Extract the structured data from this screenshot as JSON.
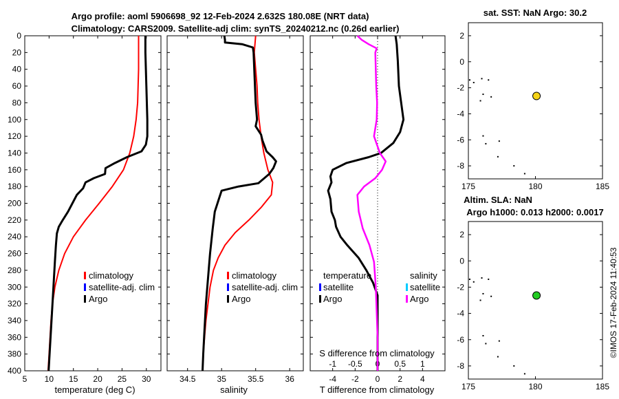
{
  "header": {
    "title_line1": "Argo profile: aoml 5906698_92 12-Feb-2024 2.632S 180.08E (NRT data)",
    "title_line2": "Climatology: CARS2009. Satellite-adj clim: synTS_20240212.nc (0.26d earlier)"
  },
  "side_stamp": "©IMOS 17-Feb-2024 11:40:53",
  "colors": {
    "climatology": "#ff0000",
    "satellite": "#0000ff",
    "argo": "#000000",
    "sat_salinity": "#00ccff",
    "argo_salinity": "#ff00ff",
    "sst_marker": "#f5d316",
    "sla_marker": "#22cc22"
  },
  "chart_data": [
    {
      "id": "temperature",
      "type": "line",
      "xlabel": "temperature (deg C)",
      "xlim": [
        5,
        33
      ],
      "ylim": [
        0,
        400
      ],
      "y_reversed": true,
      "xticks": [
        "5",
        "10",
        "15",
        "20",
        "25",
        "30"
      ],
      "xtick_values": [
        5,
        10,
        15,
        20,
        25,
        30
      ],
      "yticks": [
        "0",
        "20",
        "40",
        "60",
        "80",
        "100",
        "120",
        "140",
        "160",
        "180",
        "200",
        "220",
        "240",
        "260",
        "280",
        "300",
        "320",
        "340",
        "360",
        "380",
        "400"
      ],
      "ytick_values": [
        0,
        20,
        40,
        60,
        80,
        100,
        120,
        140,
        160,
        180,
        200,
        220,
        240,
        260,
        280,
        300,
        320,
        340,
        360,
        380,
        400
      ],
      "legend": {
        "items": [
          "climatology",
          "satellite-adj. clim",
          "Argo"
        ],
        "placement": "center-right"
      },
      "series": [
        {
          "name": "climatology",
          "color": "#ff0000",
          "points": [
            [
              28.4,
              0
            ],
            [
              28.4,
              20
            ],
            [
              28.4,
              40
            ],
            [
              28.3,
              60
            ],
            [
              28.2,
              80
            ],
            [
              27.9,
              100
            ],
            [
              27.4,
              120
            ],
            [
              26.6,
              140
            ],
            [
              25.3,
              160
            ],
            [
              23.0,
              180
            ],
            [
              20.3,
              200
            ],
            [
              17.5,
              220
            ],
            [
              15.0,
              240
            ],
            [
              13.2,
              260
            ],
            [
              12.0,
              280
            ],
            [
              11.2,
              300
            ],
            [
              10.7,
              320
            ],
            [
              10.4,
              340
            ],
            [
              10.2,
              360
            ],
            [
              10.0,
              380
            ],
            [
              9.8,
              400
            ]
          ]
        },
        {
          "name": "Argo",
          "color": "#000000",
          "points": [
            [
              29.8,
              0
            ],
            [
              29.8,
              20
            ],
            [
              29.9,
              40
            ],
            [
              30.0,
              60
            ],
            [
              30.1,
              80
            ],
            [
              30.2,
              100
            ],
            [
              30.2,
              120
            ],
            [
              29.9,
              130
            ],
            [
              29.0,
              138
            ],
            [
              26.0,
              145
            ],
            [
              23.5,
              152
            ],
            [
              21.6,
              158
            ],
            [
              21.5,
              165
            ],
            [
              19.2,
              170
            ],
            [
              17.5,
              175
            ],
            [
              17.0,
              182
            ],
            [
              15.7,
              190
            ],
            [
              14.8,
              200
            ],
            [
              13.9,
              210
            ],
            [
              12.8,
              220
            ],
            [
              12.0,
              228
            ],
            [
              11.6,
              236
            ],
            [
              11.4,
              250
            ],
            [
              11.2,
              270
            ],
            [
              11.0,
              290
            ],
            [
              10.8,
              310
            ],
            [
              10.6,
              330
            ],
            [
              10.4,
              350
            ],
            [
              10.2,
              370
            ],
            [
              10.0,
              390
            ],
            [
              9.9,
              400
            ]
          ]
        }
      ]
    },
    {
      "id": "salinity",
      "type": "line",
      "xlabel": "salinity",
      "xlim": [
        34.2,
        36.2
      ],
      "ylim": [
        0,
        400
      ],
      "y_reversed": true,
      "xticks": [
        "34.5",
        "35",
        "35.5",
        "36"
      ],
      "xtick_values": [
        34.5,
        35,
        35.5,
        36
      ],
      "legend": {
        "items": [
          "climatology",
          "satellite-adj. clim",
          "Argo"
        ],
        "placement": "center-right"
      },
      "series": [
        {
          "name": "climatology",
          "color": "#ff0000",
          "points": [
            [
              35.5,
              0
            ],
            [
              35.48,
              20
            ],
            [
              35.5,
              40
            ],
            [
              35.52,
              60
            ],
            [
              35.53,
              80
            ],
            [
              35.55,
              100
            ],
            [
              35.58,
              120
            ],
            [
              35.62,
              140
            ],
            [
              35.68,
              160
            ],
            [
              35.75,
              175
            ],
            [
              35.73,
              190
            ],
            [
              35.58,
              205
            ],
            [
              35.4,
              220
            ],
            [
              35.2,
              235
            ],
            [
              35.05,
              250
            ],
            [
              34.95,
              265
            ],
            [
              34.88,
              280
            ],
            [
              34.83,
              300
            ],
            [
              34.8,
              320
            ],
            [
              34.77,
              340
            ],
            [
              34.75,
              360
            ],
            [
              34.73,
              380
            ],
            [
              34.72,
              400
            ]
          ]
        },
        {
          "name": "Argo",
          "color": "#000000",
          "points": [
            [
              35.04,
              0
            ],
            [
              35.05,
              5
            ],
            [
              35.05,
              8
            ],
            [
              35.3,
              10
            ],
            [
              35.46,
              14
            ],
            [
              35.47,
              20
            ],
            [
              35.48,
              40
            ],
            [
              35.49,
              60
            ],
            [
              35.5,
              80
            ],
            [
              35.52,
              100
            ],
            [
              35.5,
              108
            ],
            [
              35.58,
              118
            ],
            [
              35.6,
              125
            ],
            [
              35.66,
              138
            ],
            [
              35.75,
              145
            ],
            [
              35.8,
              150
            ],
            [
              35.76,
              158
            ],
            [
              35.7,
              165
            ],
            [
              35.54,
              176
            ],
            [
              35.25,
              180
            ],
            [
              35.0,
              185
            ],
            [
              34.96,
              195
            ],
            [
              34.9,
              210
            ],
            [
              34.87,
              230
            ],
            [
              34.83,
              260
            ],
            [
              34.8,
              290
            ],
            [
              34.77,
              320
            ],
            [
              34.75,
              350
            ],
            [
              34.73,
              380
            ],
            [
              34.72,
              400
            ]
          ]
        }
      ]
    },
    {
      "id": "difference",
      "type": "line",
      "xlabel": "T difference from climatology",
      "xlabel_top": "S difference from climatology",
      "xlim": [
        -6,
        6
      ],
      "ylim": [
        0,
        400
      ],
      "y_reversed": true,
      "xticks": [
        "-4",
        "-2",
        "0",
        "2",
        "4"
      ],
      "xtick_values": [
        -4,
        -2,
        0,
        2,
        4
      ],
      "s_ticks": [
        "-1",
        "-0.5",
        "0",
        "0.5",
        "1"
      ],
      "s_tick_values": [
        -1,
        -0.5,
        0,
        0.5,
        1
      ],
      "s_scale": 4,
      "legend": {
        "temperature_title": "temperature",
        "salinity_title": "salinity",
        "items": [
          "satellite",
          "Argo",
          "satellite",
          "Argo"
        ],
        "placement": "center"
      },
      "series": [
        {
          "name": "T difference Argo",
          "color": "#000000",
          "points": [
            [
              1.6,
              0
            ],
            [
              1.7,
              10
            ],
            [
              1.8,
              30
            ],
            [
              1.9,
              60
            ],
            [
              2.1,
              80
            ],
            [
              2.3,
              100
            ],
            [
              2.0,
              115
            ],
            [
              1.4,
              128
            ],
            [
              0.3,
              140
            ],
            [
              -0.8,
              145
            ],
            [
              -2.8,
              152
            ],
            [
              -4.0,
              160
            ],
            [
              -4.2,
              168
            ],
            [
              -4.1,
              175
            ],
            [
              -4.4,
              185
            ],
            [
              -4.2,
              195
            ],
            [
              -4.1,
              210
            ],
            [
              -3.8,
              220
            ],
            [
              -3.7,
              228
            ],
            [
              -3.3,
              240
            ],
            [
              -2.7,
              250
            ],
            [
              -1.7,
              265
            ],
            [
              -1.0,
              280
            ],
            [
              -0.4,
              295
            ],
            [
              0,
              310
            ],
            [
              0,
              400
            ]
          ]
        },
        {
          "name": "S difference Argo",
          "color": "#ff00ff",
          "points": [
            [
              -0.45,
              0
            ],
            [
              -0.35,
              5
            ],
            [
              -0.2,
              10
            ],
            [
              -0.02,
              15
            ],
            [
              -0.05,
              20
            ],
            [
              -0.03,
              60
            ],
            [
              -0.01,
              80
            ],
            [
              -0.02,
              100
            ],
            [
              -0.08,
              120
            ],
            [
              0.05,
              140
            ],
            [
              0.18,
              150
            ],
            [
              0.1,
              160
            ],
            [
              -0.05,
              170
            ],
            [
              -0.3,
              180
            ],
            [
              -0.45,
              190
            ],
            [
              -0.42,
              210
            ],
            [
              -0.33,
              230
            ],
            [
              -0.18,
              250
            ],
            [
              -0.08,
              270
            ],
            [
              -0.04,
              300
            ],
            [
              -0.02,
              330
            ],
            [
              0,
              360
            ],
            [
              0,
              400
            ]
          ]
        }
      ]
    },
    {
      "id": "sst_map",
      "type": "scatter",
      "title": "sat. SST: NaN Argo: 30.2",
      "xlim": [
        175,
        185
      ],
      "ylim": [
        -9,
        3
      ],
      "xticks": [
        "175",
        "180",
        "185"
      ],
      "xtick_values": [
        175,
        180,
        185
      ],
      "yticks": [
        "2",
        "0",
        "-2",
        "-4",
        "-6",
        "-8"
      ],
      "ytick_values": [
        2,
        0,
        -2,
        -4,
        -6,
        -8
      ],
      "argo_position": [
        180.08,
        -2.632
      ],
      "land_points": [
        [
          175.1,
          -1.4
        ],
        [
          175.4,
          -1.6
        ],
        [
          176.0,
          -1.3
        ],
        [
          176.5,
          -1.4
        ],
        [
          176.7,
          -2.7
        ],
        [
          176.1,
          -2.5
        ],
        [
          175.9,
          -3.0
        ],
        [
          176.1,
          -5.7
        ],
        [
          176.3,
          -6.3
        ],
        [
          177.3,
          -6.1
        ],
        [
          177.2,
          -7.3
        ],
        [
          178.4,
          -8.0
        ],
        [
          179.2,
          -8.6
        ]
      ]
    },
    {
      "id": "sla_map",
      "type": "scatter",
      "title_line1": "Altim. SLA: NaN",
      "title_line2": "Argo h1000: 0.013 h2000: 0.0017",
      "xlim": [
        175,
        185
      ],
      "ylim": [
        -9,
        3
      ],
      "xticks": [
        "175",
        "180",
        "185"
      ],
      "xtick_values": [
        175,
        180,
        185
      ],
      "yticks": [
        "2",
        "0",
        "-2",
        "-4",
        "-6",
        "-8"
      ],
      "ytick_values": [
        2,
        0,
        -2,
        -4,
        -6,
        -8
      ],
      "argo_position": [
        180.08,
        -2.632
      ],
      "land_points": [
        [
          175.1,
          -1.4
        ],
        [
          175.4,
          -1.6
        ],
        [
          176.0,
          -1.3
        ],
        [
          176.5,
          -1.4
        ],
        [
          176.7,
          -2.7
        ],
        [
          176.1,
          -2.5
        ],
        [
          175.9,
          -3.0
        ],
        [
          176.1,
          -5.7
        ],
        [
          176.3,
          -6.3
        ],
        [
          177.3,
          -6.1
        ],
        [
          177.2,
          -7.3
        ],
        [
          178.4,
          -8.0
        ],
        [
          179.2,
          -8.6
        ]
      ]
    }
  ]
}
